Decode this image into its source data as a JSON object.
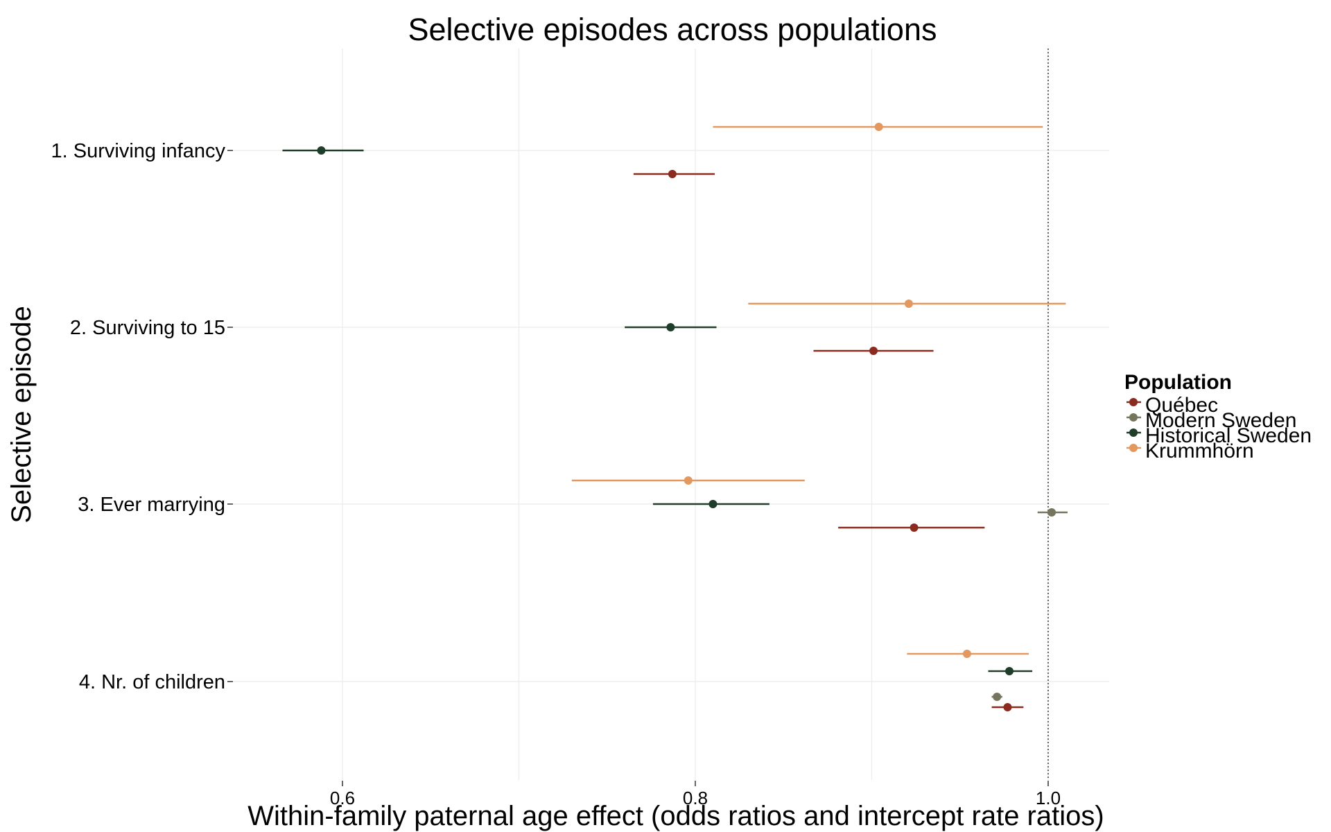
{
  "chart_data": {
    "type": "forest",
    "title": "Selective episodes across populations",
    "xlabel": "Within-family paternal age effect (odds ratios and intercept rate ratios)",
    "ylabel": "Selective episode",
    "xlim": [
      0.555,
      1.035
    ],
    "x_ticks": [
      0.6,
      0.8,
      1.0
    ],
    "x_tick_labels": [
      "0.6",
      "0.8",
      "1.0"
    ],
    "x_minor_ticks": [
      0.7,
      0.9
    ],
    "reference_line_x": 1.0,
    "grid": true,
    "legend_title": "Population",
    "legend_position": "right",
    "episodes": [
      "1. Surviving infancy",
      "2. Surviving to 15",
      "3. Ever marrying",
      "4. Nr. of children"
    ],
    "series": [
      {
        "name": "Québec",
        "color": "#8b2a1f",
        "points": [
          {
            "episode": "1. Surviving infancy",
            "estimate": 0.787,
            "lower": 0.765,
            "upper": 0.811
          },
          {
            "episode": "2. Surviving to 15",
            "estimate": 0.901,
            "lower": 0.867,
            "upper": 0.935
          },
          {
            "episode": "3. Ever marrying",
            "estimate": 0.924,
            "lower": 0.881,
            "upper": 0.964
          },
          {
            "episode": "4. Nr. of children",
            "estimate": 0.977,
            "lower": 0.968,
            "upper": 0.986
          }
        ]
      },
      {
        "name": "Modern Sweden",
        "color": "#75745c",
        "points": [
          {
            "episode": "3. Ever marrying",
            "estimate": 1.002,
            "lower": 0.994,
            "upper": 1.011
          },
          {
            "episode": "4. Nr. of children",
            "estimate": 0.971,
            "lower": 0.968,
            "upper": 0.974
          }
        ]
      },
      {
        "name": "Historical Sweden",
        "color": "#1f3d29",
        "points": [
          {
            "episode": "1. Surviving infancy",
            "estimate": 0.588,
            "lower": 0.566,
            "upper": 0.612
          },
          {
            "episode": "2. Surviving to 15",
            "estimate": 0.786,
            "lower": 0.76,
            "upper": 0.812
          },
          {
            "episode": "3. Ever marrying",
            "estimate": 0.81,
            "lower": 0.776,
            "upper": 0.842
          },
          {
            "episode": "4. Nr. of children",
            "estimate": 0.978,
            "lower": 0.966,
            "upper": 0.991
          }
        ]
      },
      {
        "name": "Krummhörn",
        "color": "#e2985f",
        "points": [
          {
            "episode": "1. Surviving infancy",
            "estimate": 0.904,
            "lower": 0.81,
            "upper": 0.997
          },
          {
            "episode": "2. Surviving to 15",
            "estimate": 0.921,
            "lower": 0.83,
            "upper": 1.01
          },
          {
            "episode": "3. Ever marrying",
            "estimate": 0.796,
            "lower": 0.73,
            "upper": 0.862
          },
          {
            "episode": "4. Nr. of children",
            "estimate": 0.954,
            "lower": 0.92,
            "upper": 0.989
          }
        ]
      }
    ]
  }
}
